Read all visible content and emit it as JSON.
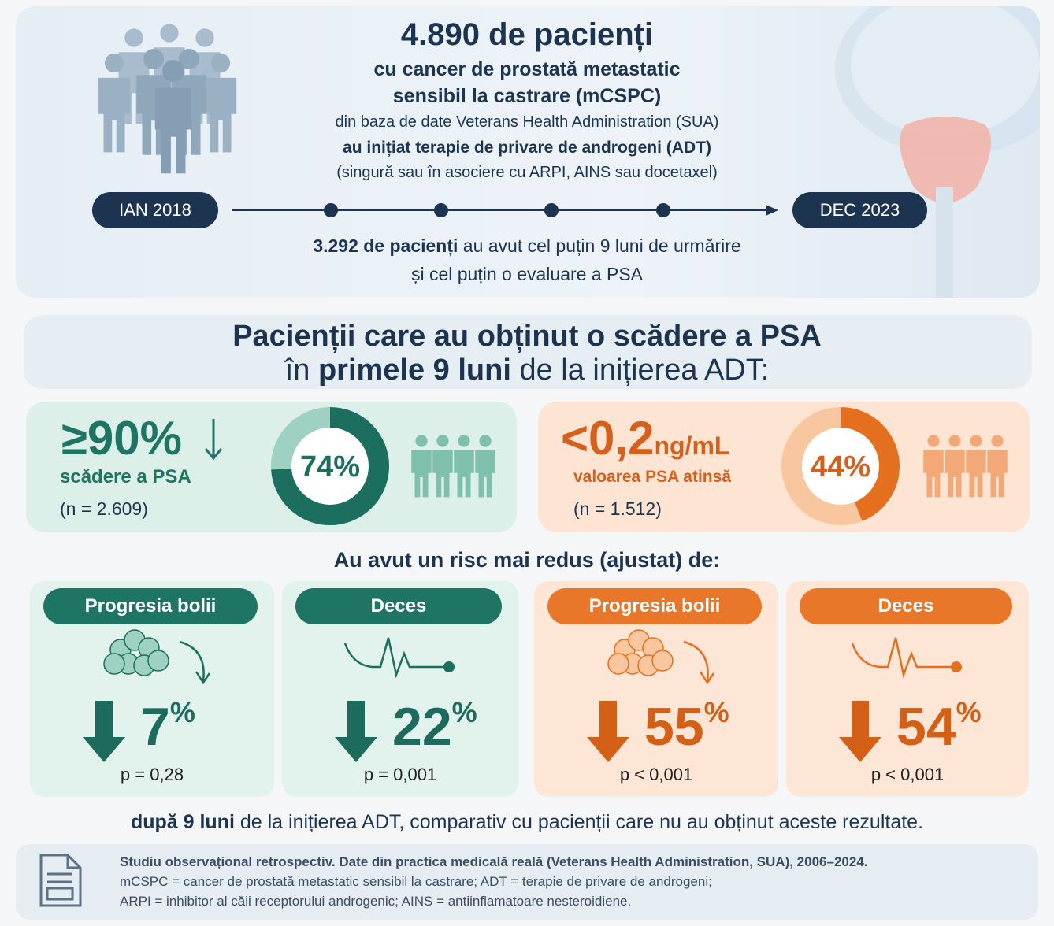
{
  "header": {
    "title": "4.890 de pacienți",
    "subtitle_lines": [
      "cu cancer de prostată metastatic",
      "sensibil la castrare (mCSPC)"
    ],
    "source": "din baza de date Veterans Health Administration (SUA)",
    "initiation": "au inițiat terapie de privare de androgeni (ADT)",
    "initiation_note": "(singură sau în asociere cu ARPI, AINS sau docetaxel)",
    "timeline": {
      "start": "IAN 2018",
      "end": "DEC 2023"
    },
    "followup": {
      "bold": "3.292 de pacienți",
      "rest": " au avut cel puțin 9 luni de urmărire",
      "line2": "și cel puțin o evaluare a PSA"
    }
  },
  "section_title": {
    "line1": "Pacienții care au obținut o scădere a PSA",
    "line2_pre": "în ",
    "line2_bold": "primele 9 luni",
    "line2_post": " de la inițierea ADT:"
  },
  "psa_results": [
    {
      "headline": "≥90%",
      "description": "scădere a PSA",
      "n": "(n = 2.609)",
      "share": {
        "value": 74,
        "label": "74%"
      }
    },
    {
      "headline": "<0,2",
      "unit": "ng/mL",
      "description": "valoarea PSA atinsă",
      "n": "(n = 1.512)",
      "share": {
        "value": 44,
        "label": "44%"
      }
    }
  ],
  "risk_heading": "Au avut un risc mai redus (ajustat) de:",
  "risk_cards": [
    {
      "label": "Progresia bolii",
      "reduction": "7",
      "unit": "%",
      "p": "p = 0,28"
    },
    {
      "label": "Deces",
      "reduction": "22",
      "unit": "%",
      "p": "p = 0,001"
    },
    {
      "label": "Progresia bolii",
      "reduction": "55",
      "unit": "%",
      "p": "p < 0,001"
    },
    {
      "label": "Deces",
      "reduction": "54",
      "unit": "%",
      "p": "p < 0,001"
    }
  ],
  "comparison": {
    "bold": "după 9 luni",
    "rest": " de la inițierea ADT, comparativ cu pacienții care nu au obținut aceste rezultate."
  },
  "footnote": {
    "lines": [
      "Studiu observațional retrospectiv. Date din practica medicală reală (Veterans Health Administration, SUA), 2006–2024.",
      "mCSPC = cancer de prostată metastatic sensibil la castrare; ADT = terapie de privare de androgeni;",
      "ARPI = inhibitor al căii receptorului androgenic; AINS = antiinflamatoare nesteroidiene."
    ]
  }
}
